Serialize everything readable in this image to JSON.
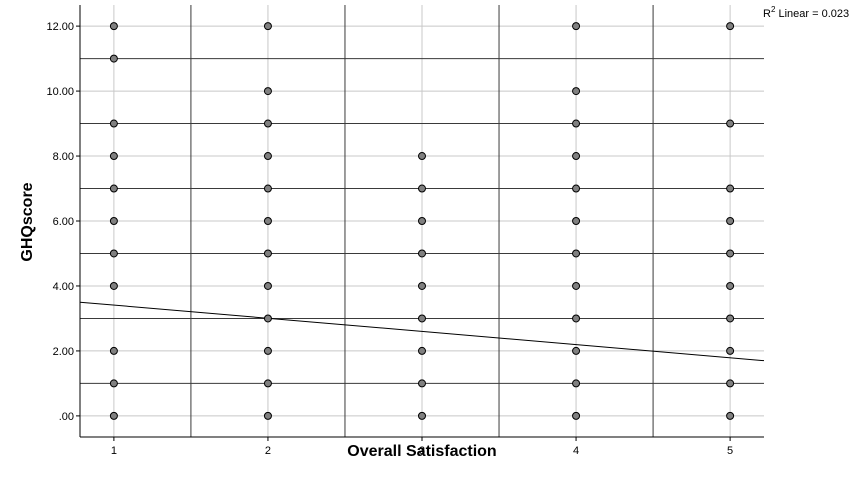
{
  "chart_data": {
    "type": "scatter",
    "xlabel": "Overall Satisfaction",
    "ylabel": "GHQscore",
    "xlim": [
      0.78,
      5.22
    ],
    "ylim": [
      -0.65,
      12.65
    ],
    "x_ticks": [
      "1",
      "2",
      "3",
      "4",
      "5"
    ],
    "y_ticks": [
      ".00",
      "2.00",
      "4.00",
      "6.00",
      "8.00",
      "10.00",
      "12.00"
    ],
    "y_tick_values": [
      0,
      2,
      4,
      6,
      8,
      10,
      12
    ],
    "grid": true,
    "points": [
      [
        1,
        12
      ],
      [
        1,
        11
      ],
      [
        1,
        9
      ],
      [
        1,
        8
      ],
      [
        1,
        7
      ],
      [
        1,
        6
      ],
      [
        1,
        5
      ],
      [
        1,
        4
      ],
      [
        1,
        2
      ],
      [
        1,
        1
      ],
      [
        1,
        0
      ],
      [
        2,
        12
      ],
      [
        2,
        10
      ],
      [
        2,
        9
      ],
      [
        2,
        8
      ],
      [
        2,
        7
      ],
      [
        2,
        6
      ],
      [
        2,
        5
      ],
      [
        2,
        4
      ],
      [
        2,
        3
      ],
      [
        2,
        2
      ],
      [
        2,
        1
      ],
      [
        2,
        0
      ],
      [
        3,
        8
      ],
      [
        3,
        7
      ],
      [
        3,
        6
      ],
      [
        3,
        5
      ],
      [
        3,
        4
      ],
      [
        3,
        3
      ],
      [
        3,
        2
      ],
      [
        3,
        1
      ],
      [
        3,
        0
      ],
      [
        4,
        12
      ],
      [
        4,
        10
      ],
      [
        4,
        9
      ],
      [
        4,
        8
      ],
      [
        4,
        7
      ],
      [
        4,
        6
      ],
      [
        4,
        5
      ],
      [
        4,
        4
      ],
      [
        4,
        3
      ],
      [
        4,
        2
      ],
      [
        4,
        1
      ],
      [
        4,
        0
      ],
      [
        5,
        12
      ],
      [
        5,
        9
      ],
      [
        5,
        7
      ],
      [
        5,
        6
      ],
      [
        5,
        5
      ],
      [
        5,
        4
      ],
      [
        5,
        3
      ],
      [
        5,
        2
      ],
      [
        5,
        1
      ],
      [
        5,
        0
      ]
    ],
    "fit_line": {
      "type": "linear",
      "x": [
        0.78,
        5.22
      ],
      "y": [
        3.5,
        1.7
      ]
    },
    "r2_label": {
      "prefix": "R",
      "sup": "2",
      "text": " Linear = 0.023"
    },
    "colors": {
      "marker": "#808080",
      "marker_edge": "#000000",
      "grid": "#c8c8c8",
      "axis": "#000000"
    }
  }
}
